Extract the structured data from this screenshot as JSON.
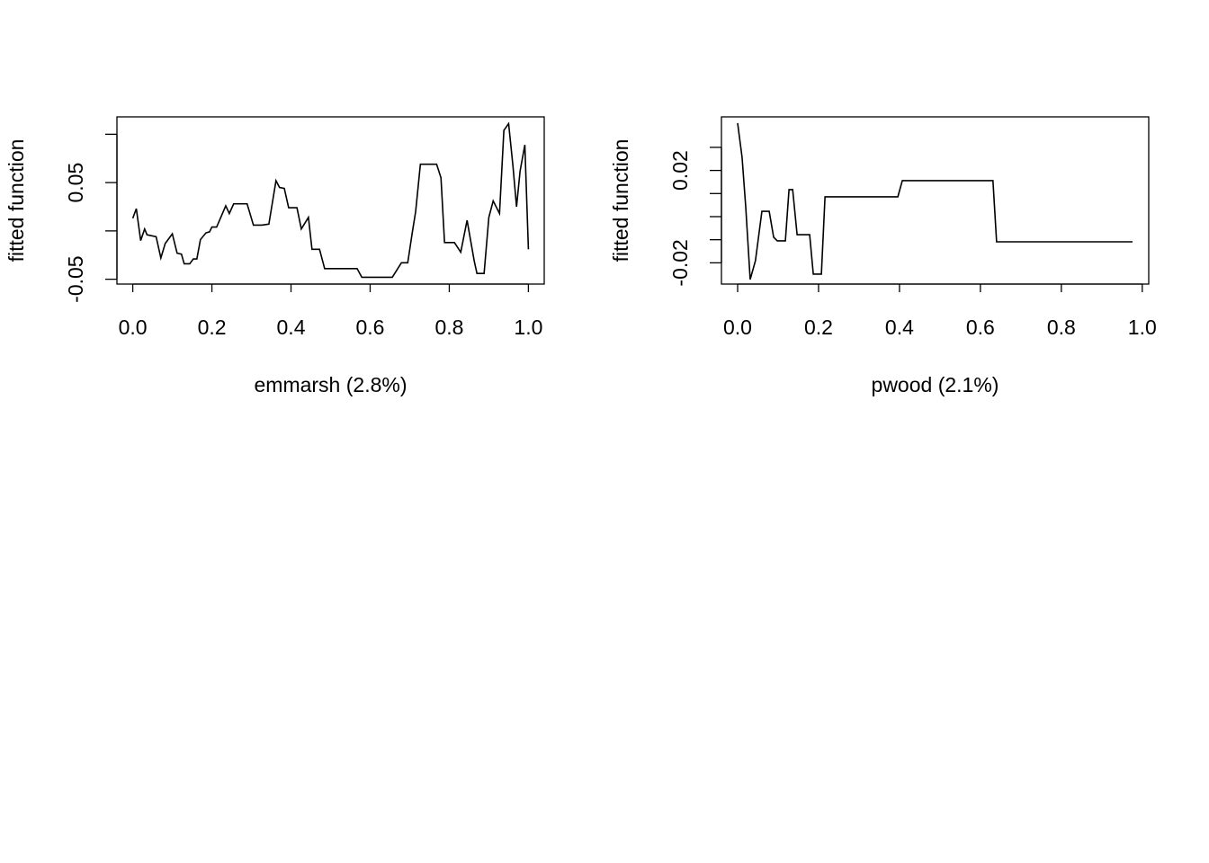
{
  "chart_data": [
    {
      "type": "line",
      "xlabel": "emmarsh  (2.8%)",
      "ylabel": "fitted function",
      "xlim": [
        -0.04,
        1.04
      ],
      "ylim": [
        -0.055,
        0.118
      ],
      "xticks": [
        {
          "value": 0,
          "label": "0.0"
        },
        0.2,
        0.4,
        0.6,
        0.8,
        {
          "value": 1,
          "label": "1.0"
        }
      ],
      "yticks": [
        -0.05,
        {
          "value": 0,
          "label": null
        },
        0.05,
        {
          "value": 0.1,
          "label": null
        }
      ],
      "color": "#000000",
      "x": [
        0,
        0.009,
        0.02,
        0.03,
        0.036,
        0.059,
        0.071,
        0.082,
        0.1,
        0.112,
        0.123,
        0.13,
        0.144,
        0.153,
        0.162,
        0.171,
        0.185,
        0.194,
        0.2,
        0.212,
        0.235,
        0.244,
        0.255,
        0.289,
        0.305,
        0.326,
        0.344,
        0.362,
        0.371,
        0.383,
        0.394,
        0.415,
        0.426,
        0.444,
        0.453,
        0.472,
        0.485,
        0.567,
        0.579,
        0.656,
        0.679,
        0.695,
        0.706,
        0.715,
        0.727,
        0.768,
        0.779,
        0.788,
        0.813,
        0.829,
        0.845,
        0.863,
        0.87,
        0.888,
        0.9,
        0.911,
        0.927,
        0.938,
        0.95,
        0.961,
        0.97,
        0.979,
        0.991,
        1.0
      ],
      "values": [
        0.013,
        0.023,
        -0.01,
        0.002,
        -0.004,
        -0.006,
        -0.028,
        -0.013,
        -0.003,
        -0.023,
        -0.024,
        -0.034,
        -0.034,
        -0.029,
        -0.029,
        -0.009,
        -0.002,
        -0.001,
        0.004,
        0.004,
        0.026,
        0.018,
        0.028,
        0.028,
        0.006,
        0.006,
        0.007,
        0.052,
        0.045,
        0.044,
        0.024,
        0.024,
        0.002,
        0.014,
        -0.019,
        -0.019,
        -0.039,
        -0.039,
        -0.048,
        -0.048,
        -0.033,
        -0.033,
        -0.003,
        0.02,
        0.069,
        0.069,
        0.055,
        -0.012,
        -0.012,
        -0.022,
        0.011,
        -0.031,
        -0.044,
        -0.044,
        0.014,
        0.031,
        0.018,
        0.104,
        0.111,
        0.067,
        0.025,
        0.062,
        0.089,
        -0.019
      ]
    },
    {
      "type": "line",
      "xlabel": "pwood  (2.1%)",
      "ylabel": "fitted function",
      "xlim": [
        -0.04,
        1.016
      ],
      "ylim": [
        -0.0292,
        0.0432
      ],
      "xticks": [
        {
          "value": 0,
          "label": "0.0"
        },
        0.2,
        0.4,
        0.6,
        0.8,
        {
          "value": 1,
          "label": "1.0"
        }
      ],
      "yticks": [
        -0.02,
        {
          "value": -0.01,
          "label": null
        },
        {
          "value": 0,
          "label": null
        },
        {
          "value": 0.01,
          "label": null
        },
        0.02,
        {
          "value": 0.03,
          "label": null
        }
      ],
      "color": "#000000",
      "x": [
        0,
        0.011,
        0.02,
        0.031,
        0.044,
        0.06,
        0.078,
        0.089,
        0.098,
        0.118,
        0.127,
        0.136,
        0.147,
        0.178,
        0.187,
        0.207,
        0.216,
        0.396,
        0.407,
        0.631,
        0.64,
        0.976
      ],
      "values": [
        0.0405,
        0.0257,
        0.0043,
        -0.0272,
        -0.0191,
        0.0023,
        0.0023,
        -0.0089,
        -0.0105,
        -0.0105,
        0.0117,
        0.0117,
        -0.0078,
        -0.0078,
        -0.0249,
        -0.0249,
        0.0086,
        0.0086,
        0.0156,
        0.0156,
        -0.0109,
        -0.0109
      ]
    }
  ]
}
